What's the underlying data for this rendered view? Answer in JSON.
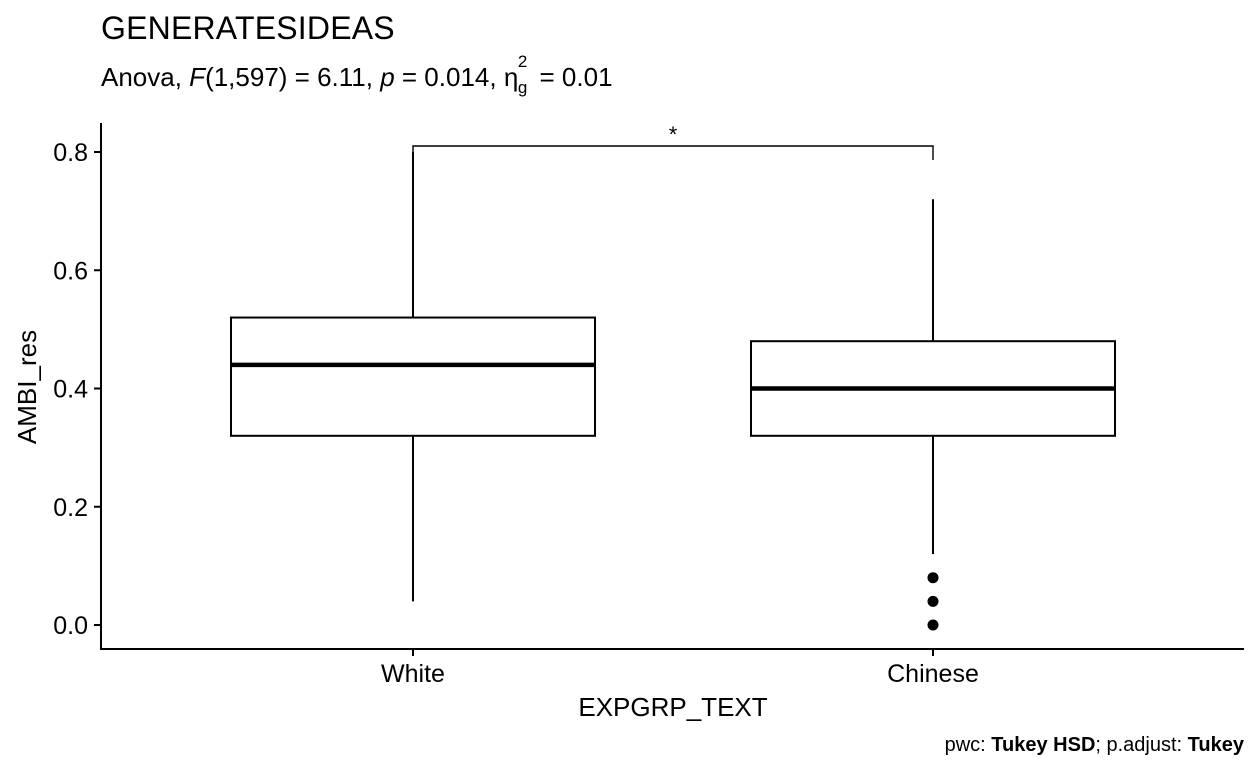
{
  "chart_data": {
    "type": "box",
    "title": "GENERATESIDEAS",
    "subtitle": {
      "prefix": "Anova, ",
      "f_symbol": "F",
      "f_args": "(1,597) = 6.11, ",
      "p_symbol": "p",
      "p_text": " = 0.014, ",
      "eta_symbol": "η",
      "eta_sup": "2",
      "eta_sub": "g",
      "eta_text": " = 0.01"
    },
    "xlabel": "EXPGRP_TEXT",
    "ylabel": "AMBI_res",
    "categories": [
      "White",
      "Chinese"
    ],
    "yticks": [
      "0.0",
      "0.2",
      "0.4",
      "0.6",
      "0.8"
    ],
    "ylim": [
      -0.04,
      0.85
    ],
    "boxes": [
      {
        "category": "White",
        "lower_whisker": 0.04,
        "q1": 0.32,
        "median": 0.44,
        "q3": 0.52,
        "upper_whisker": 0.8,
        "outliers": []
      },
      {
        "category": "Chinese",
        "lower_whisker": 0.12,
        "q1": 0.32,
        "median": 0.4,
        "q3": 0.48,
        "upper_whisker": 0.72,
        "outliers": [
          0.08,
          0.04,
          0.0
        ]
      }
    ],
    "comparison": {
      "group1": "White",
      "group2": "Chinese",
      "y": 0.81,
      "label": "*"
    },
    "caption": {
      "pwc_label": "pwc: ",
      "pwc_value": "Tukey HSD",
      "sep": "; p.adjust: ",
      "padj_value": "Tukey"
    }
  }
}
